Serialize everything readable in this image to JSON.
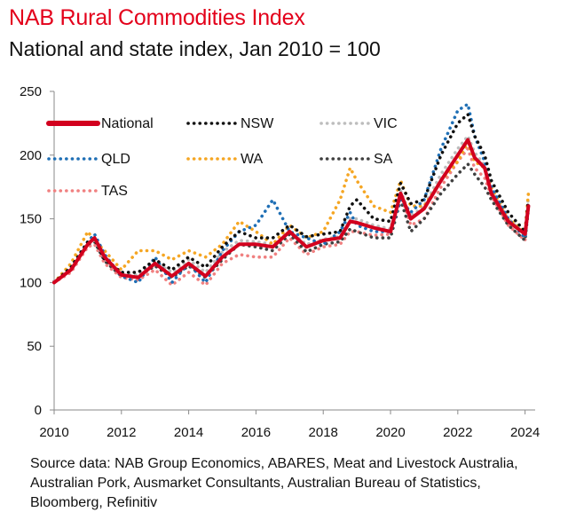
{
  "header": {
    "title": "NAB Rural Commodities Index",
    "subtitle": "National and state index, Jan 2010 = 100"
  },
  "source": {
    "text": "Source data: NAB Group Economics, ABARES, Meat and Livestock Australia, Australian Pork, Ausmarket Consultants, Australian Bureau of Statistics, Bloomberg, Refinitiv"
  },
  "colors": {
    "title": "#e3001b",
    "axis": "#8a8a8a",
    "National": "#d2001e",
    "NSW": "#111111",
    "VIC": "#bdbdbd",
    "QLD": "#1f6fb5",
    "WA": "#f5a623",
    "SA": "#404040",
    "TAS": "#f08080"
  },
  "chart_data": {
    "type": "line",
    "xlim": [
      2010,
      2024.3
    ],
    "ylim": [
      0,
      250
    ],
    "x_ticks": [
      "2010",
      "2012",
      "2014",
      "2016",
      "2018",
      "2020",
      "2022",
      "2024"
    ],
    "y_ticks": [
      "0",
      "50",
      "100",
      "150",
      "200",
      "250"
    ],
    "grid": false,
    "legend": "top-left, three columns",
    "x": [
      2010.0,
      2010.5,
      2011.0,
      2011.2,
      2011.5,
      2012.0,
      2012.5,
      2013.0,
      2013.5,
      2014.0,
      2014.5,
      2015.0,
      2015.5,
      2016.0,
      2016.5,
      2017.0,
      2017.5,
      2018.0,
      2018.5,
      2018.8,
      2019.0,
      2019.5,
      2020.0,
      2020.3,
      2020.6,
      2021.0,
      2021.5,
      2022.0,
      2022.3,
      2022.5,
      2022.8,
      2023.0,
      2023.5,
      2024.0,
      2024.1
    ],
    "series": [
      {
        "name": "National",
        "values": [
          100,
          110,
          130,
          135,
          120,
          106,
          104,
          115,
          105,
          115,
          105,
          120,
          130,
          130,
          128,
          140,
          128,
          133,
          135,
          148,
          147,
          143,
          140,
          170,
          150,
          158,
          180,
          200,
          212,
          198,
          190,
          170,
          148,
          138,
          160
        ]
      },
      {
        "name": "NSW",
        "values": [
          100,
          112,
          132,
          134,
          118,
          108,
          108,
          118,
          110,
          120,
          112,
          128,
          140,
          135,
          135,
          145,
          136,
          138,
          140,
          160,
          165,
          150,
          148,
          178,
          162,
          165,
          200,
          225,
          232,
          215,
          200,
          180,
          155,
          140,
          165
        ]
      },
      {
        "name": "VIC",
        "values": [
          101,
          111,
          131,
          133,
          119,
          106,
          106,
          116,
          108,
          118,
          108,
          124,
          133,
          132,
          130,
          140,
          130,
          134,
          136,
          150,
          150,
          145,
          142,
          172,
          152,
          160,
          185,
          205,
          215,
          202,
          192,
          172,
          150,
          138,
          168
        ]
      },
      {
        "name": "QLD",
        "values": [
          100,
          112,
          132,
          138,
          122,
          105,
          100,
          120,
          100,
          115,
          100,
          125,
          140,
          145,
          165,
          140,
          135,
          130,
          140,
          155,
          145,
          140,
          140,
          165,
          155,
          165,
          205,
          235,
          240,
          215,
          195,
          175,
          150,
          135,
          160
        ]
      },
      {
        "name": "WA",
        "values": [
          100,
          115,
          140,
          133,
          125,
          110,
          125,
          125,
          118,
          125,
          120,
          130,
          148,
          140,
          130,
          145,
          135,
          140,
          165,
          190,
          180,
          160,
          155,
          180,
          160,
          160,
          180,
          195,
          210,
          195,
          190,
          175,
          150,
          140,
          170
        ]
      },
      {
        "name": "SA",
        "values": [
          101,
          110,
          130,
          132,
          117,
          105,
          105,
          113,
          104,
          113,
          104,
          118,
          130,
          128,
          125,
          138,
          124,
          130,
          132,
          142,
          140,
          135,
          135,
          165,
          140,
          150,
          170,
          185,
          193,
          185,
          175,
          165,
          145,
          133,
          158
        ]
      },
      {
        "name": "TAS",
        "values": [
          100,
          108,
          128,
          130,
          115,
          104,
          102,
          110,
          98,
          108,
          98,
          115,
          122,
          120,
          120,
          135,
          122,
          128,
          130,
          140,
          140,
          137,
          138,
          170,
          145,
          150,
          175,
          195,
          205,
          190,
          182,
          168,
          145,
          133,
          160
        ]
      }
    ]
  }
}
